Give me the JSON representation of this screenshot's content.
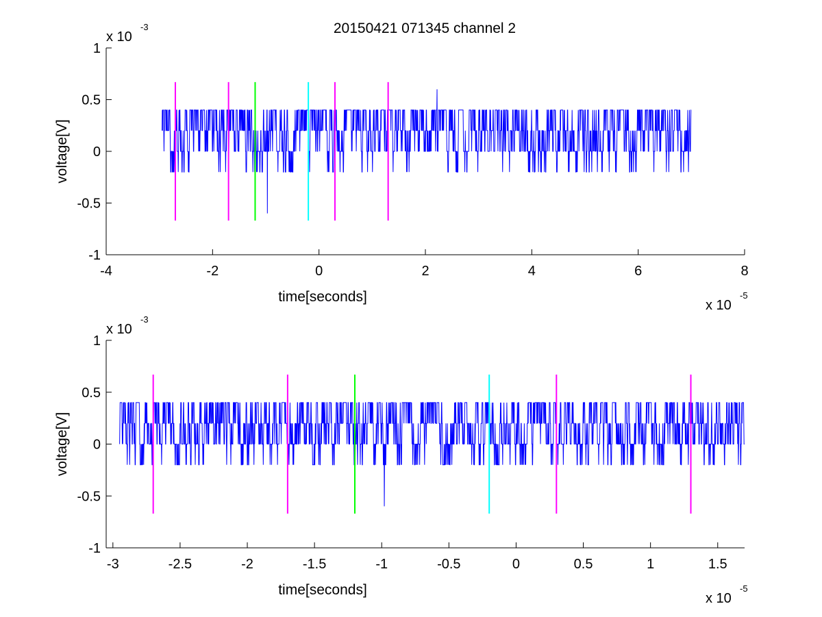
{
  "figure_title": "20150421 071345 channel 2",
  "colors": {
    "trace": "#0000ff",
    "marker_magenta": "#ff00ff",
    "marker_green": "#00ff00",
    "marker_cyan": "#00ffff",
    "axes": "#000000"
  },
  "chart_data": [
    {
      "type": "line",
      "title": "20150421 071345 channel 2",
      "xlabel": "time[seconds]",
      "ylabel": "voltage[V]",
      "x_exponent_label": "x 10",
      "x_exponent": "-5",
      "y_exponent_label": "x 10",
      "y_exponent": "-3",
      "xlim": [
        -4,
        8
      ],
      "ylim": [
        -1,
        1
      ],
      "xticks": [
        -4,
        -2,
        0,
        2,
        4,
        6,
        8
      ],
      "xtick_labels": [
        "-4",
        "-2",
        "0",
        "2",
        "4",
        "6",
        "8"
      ],
      "yticks": [
        -1,
        -0.5,
        0,
        0.5,
        1
      ],
      "ytick_labels": [
        "-1",
        "-0.5",
        "0",
        "0.5",
        "1"
      ],
      "grid": false,
      "series": [
        {
          "x_range": [
            -2.95,
            7.0
          ],
          "quantization": 0.2,
          "levels": [
            -0.2,
            0,
            0.2,
            0.4
          ],
          "values_excerpt": [
            0,
            0.2,
            0,
            0.4,
            0.2,
            0,
            -0.2,
            0.2,
            0.4,
            0.2
          ]
        }
      ],
      "spikes": [
        {
          "x": -1.7,
          "y": -0.4
        },
        {
          "x": -0.97,
          "y": -0.6
        },
        {
          "x": 2.22,
          "y": 0.6
        }
      ],
      "markers": [
        {
          "x": -2.7,
          "color": "magenta",
          "y_range": [
            -0.67,
            0.67
          ]
        },
        {
          "x": -1.7,
          "color": "magenta",
          "y_range": [
            -0.67,
            0.67
          ]
        },
        {
          "x": -1.2,
          "color": "green",
          "y_range": [
            -0.67,
            0.67
          ]
        },
        {
          "x": -0.2,
          "color": "cyan",
          "y_range": [
            -0.67,
            0.67
          ]
        },
        {
          "x": 0.3,
          "color": "magenta",
          "y_range": [
            -0.67,
            0.67
          ]
        },
        {
          "x": 1.3,
          "color": "magenta",
          "y_range": [
            -0.67,
            0.67
          ]
        }
      ]
    },
    {
      "type": "line",
      "title": "",
      "xlabel": "time[seconds]",
      "ylabel": "voltage[V]",
      "x_exponent_label": "x 10",
      "x_exponent": "-5",
      "y_exponent_label": "x 10",
      "y_exponent": "-3",
      "xlim": [
        -3.05,
        1.7
      ],
      "ylim": [
        -1,
        1
      ],
      "xticks": [
        -3,
        -2.5,
        -2,
        -1.5,
        -1,
        -0.5,
        0,
        0.5,
        1,
        1.5
      ],
      "xtick_labels": [
        "-3",
        "-2.5",
        "-2",
        "-1.5",
        "-1",
        "-0.5",
        "0",
        "0.5",
        "1",
        "1.5"
      ],
      "yticks": [
        -1,
        -0.5,
        0,
        0.5,
        1
      ],
      "ytick_labels": [
        "-1",
        "-0.5",
        "0",
        "0.5",
        "1"
      ],
      "grid": false,
      "series": [
        {
          "x_range": [
            -2.95,
            1.7
          ],
          "quantization": 0.2,
          "levels": [
            -0.2,
            0,
            0.2,
            0.4
          ],
          "values_excerpt": [
            0,
            0.2,
            0,
            0.4,
            0.2,
            0,
            -0.2,
            0.2,
            0.4,
            0.2
          ]
        }
      ],
      "spikes": [
        {
          "x": -1.7,
          "y": -0.4
        },
        {
          "x": -0.98,
          "y": -0.6
        }
      ],
      "markers": [
        {
          "x": -2.7,
          "color": "magenta",
          "y_range": [
            -0.67,
            0.67
          ]
        },
        {
          "x": -1.7,
          "color": "magenta",
          "y_range": [
            -0.67,
            0.67
          ]
        },
        {
          "x": -1.2,
          "color": "green",
          "y_range": [
            -0.67,
            0.67
          ]
        },
        {
          "x": -0.2,
          "color": "cyan",
          "y_range": [
            -0.67,
            0.67
          ]
        },
        {
          "x": 0.3,
          "color": "magenta",
          "y_range": [
            -0.67,
            0.67
          ]
        },
        {
          "x": 1.3,
          "color": "magenta",
          "y_range": [
            -0.67,
            0.67
          ]
        }
      ]
    }
  ]
}
